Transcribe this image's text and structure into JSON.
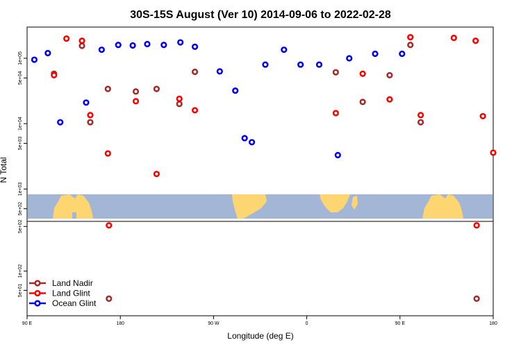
{
  "chart_data": {
    "type": "scatter",
    "title": "30S-15S August (Ver 10)   2014-09-06 to 2022-02-28",
    "xlabel": "Longitude (deg E)",
    "ylabel": "N Total",
    "x_ticks": [
      {
        "value": 90,
        "label": "90 E"
      },
      {
        "value": 180,
        "label": "180"
      },
      {
        "value": 270,
        "label": "90 W"
      },
      {
        "value": 360,
        "label": "0"
      },
      {
        "value": 450,
        "label": "90 E"
      },
      {
        "value": 540,
        "label": "180"
      }
    ],
    "xlim": [
      90,
      540
    ],
    "upper_panel": {
      "yscale": "log",
      "ylim": [
        320,
        300000
      ],
      "y_ticks": [
        {
          "value": 500,
          "label": "5e+02"
        },
        {
          "value": 1000,
          "label": "1e+03"
        },
        {
          "value": 5000,
          "label": "5e+03"
        },
        {
          "value": 10000,
          "label": "1e+04"
        },
        {
          "value": 50000,
          "label": "5e+04"
        },
        {
          "value": 100000,
          "label": "1e+05"
        }
      ]
    },
    "lower_panel": {
      "yscale": "log",
      "ylim": [
        20,
        600
      ],
      "y_ticks": [
        {
          "value": 50,
          "label": "5e+01"
        },
        {
          "value": 100,
          "label": "1e+02"
        },
        {
          "value": 500,
          "label": "5e+02"
        }
      ]
    },
    "colors": {
      "land_nadir": "#a52a2a",
      "land_glint": "#ff0000",
      "ocean_glint": "#0000ee",
      "ocean_map": "#a3b6d6",
      "land_map": "#fdd672"
    },
    "series": [
      {
        "name": "Land Nadir",
        "panel": "upper",
        "points": [
          [
            116,
            58000
          ],
          [
            143,
            155000
          ],
          [
            151,
            10500
          ],
          [
            168,
            34000
          ],
          [
            195,
            31000
          ],
          [
            215,
            34000
          ],
          [
            237,
            20000
          ],
          [
            252,
            62000
          ],
          [
            388,
            61000
          ],
          [
            414,
            21500
          ],
          [
            440,
            55000
          ],
          [
            460,
            160000
          ],
          [
            470,
            10500
          ]
        ]
      },
      {
        "name": "Land Nadir",
        "panel": "lower",
        "points": [
          [
            169,
            37
          ],
          [
            524,
            37
          ]
        ]
      },
      {
        "name": "Land Glint",
        "panel": "upper",
        "points": [
          [
            116,
            55000
          ],
          [
            128,
            200000
          ],
          [
            143,
            185000
          ],
          [
            151,
            13500
          ],
          [
            168,
            3500
          ],
          [
            195,
            22000
          ],
          [
            215,
            1700
          ],
          [
            237,
            24000
          ],
          [
            252,
            16000
          ],
          [
            388,
            14500
          ],
          [
            414,
            58000
          ],
          [
            440,
            23500
          ],
          [
            460,
            210000
          ],
          [
            470,
            13500
          ],
          [
            502,
            205000
          ],
          [
            523,
            185000
          ],
          [
            530,
            13000
          ],
          [
            540,
            3600
          ]
        ]
      },
      {
        "name": "Land Glint",
        "panel": "lower",
        "points": [
          [
            169,
            520
          ],
          [
            524,
            520
          ]
        ]
      },
      {
        "name": "Ocean Glint",
        "panel": "upper",
        "points": [
          [
            97,
            95000
          ],
          [
            110,
            120000
          ],
          [
            122,
            10500
          ],
          [
            147,
            21000
          ],
          [
            162,
            135000
          ],
          [
            178,
            160000
          ],
          [
            192,
            157000
          ],
          [
            206,
            165000
          ],
          [
            222,
            160000
          ],
          [
            238,
            175000
          ],
          [
            252,
            150000
          ],
          [
            276,
            63000
          ],
          [
            291,
            32000
          ],
          [
            300,
            6000
          ],
          [
            307,
            5200
          ],
          [
            320,
            80000
          ],
          [
            338,
            135000
          ],
          [
            354,
            80000
          ],
          [
            372,
            80000
          ],
          [
            390,
            3300
          ],
          [
            401,
            100000
          ],
          [
            426,
            117000
          ],
          [
            452,
            117000
          ]
        ]
      }
    ]
  }
}
